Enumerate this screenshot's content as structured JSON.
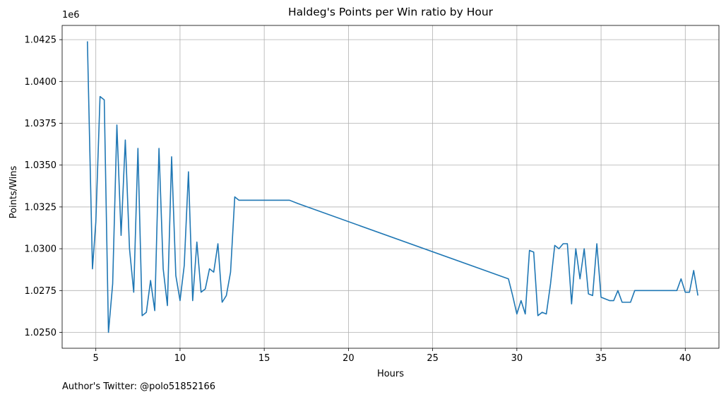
{
  "chart_data": {
    "type": "line",
    "title": "Haldeg's Points per Win ratio by Hour",
    "xlabel": "Hours",
    "ylabel": "Points/Wins",
    "y_offset_label": "1e6",
    "footer": "Author's Twitter: @polo51852166",
    "xlim": [
      3.0,
      42.0
    ],
    "ylim": [
      1.02405,
      1.04335
    ],
    "x_ticks": [
      5,
      10,
      15,
      20,
      25,
      30,
      35,
      40
    ],
    "x_tick_labels": [
      "5",
      "10",
      "15",
      "20",
      "25",
      "30",
      "35",
      "40"
    ],
    "y_ticks": [
      1.025,
      1.0275,
      1.03,
      1.0325,
      1.035,
      1.0375,
      1.04,
      1.0425
    ],
    "y_tick_labels": [
      "1.0250",
      "1.0275",
      "1.0300",
      "1.0325",
      "1.0350",
      "1.0375",
      "1.0400",
      "1.0425"
    ],
    "grid": true,
    "line_color": "#1f77b4",
    "series": [
      {
        "x": [
          4.5,
          4.8,
          5.0,
          5.25,
          5.5,
          5.75,
          6.0,
          6.25,
          6.5,
          6.75,
          7.0,
          7.25,
          7.5,
          7.75,
          8.0,
          8.25,
          8.5,
          8.75,
          9.0,
          9.25,
          9.5,
          9.75,
          10.0,
          10.25,
          10.5,
          10.75,
          11.0,
          11.25,
          11.5,
          11.75,
          12.0,
          12.25,
          12.5,
          12.75,
          13.0,
          13.25,
          13.5,
          14.0,
          15.0,
          16.0,
          16.5,
          17.0,
          29.5,
          29.75,
          30.0,
          30.25,
          30.5,
          30.75,
          31.0,
          31.25,
          31.5,
          31.75,
          32.0,
          32.25,
          32.5,
          32.75,
          33.0,
          33.25,
          33.5,
          33.75,
          34.0,
          34.25,
          34.5,
          34.75,
          35.0,
          35.5,
          35.75,
          36.0,
          36.25,
          36.5,
          36.75,
          37.0,
          39.5,
          39.75,
          40.0,
          40.25,
          40.5,
          40.75
        ],
        "y": [
          1.0424,
          1.0288,
          1.0316,
          1.0391,
          1.0389,
          1.025,
          1.0279,
          1.0374,
          1.0308,
          1.0365,
          1.03,
          1.0274,
          1.036,
          1.026,
          1.0262,
          1.0281,
          1.0263,
          1.036,
          1.0288,
          1.0266,
          1.0355,
          1.0284,
          1.0269,
          1.029,
          1.0346,
          1.0269,
          1.0304,
          1.0274,
          1.0276,
          1.0288,
          1.0286,
          1.0303,
          1.0268,
          1.0272,
          1.0286,
          1.0331,
          1.0329,
          1.0329,
          1.0329,
          1.0329,
          1.0329,
          1.0327,
          1.0282,
          1.0272,
          1.0261,
          1.0269,
          1.0261,
          1.0299,
          1.0298,
          1.026,
          1.0262,
          1.0261,
          1.0279,
          1.0302,
          1.03,
          1.0303,
          1.0303,
          1.0267,
          1.03,
          1.0282,
          1.03,
          1.0273,
          1.0272,
          1.0303,
          1.0271,
          1.0269,
          1.0269,
          1.0275,
          1.0268,
          1.0268,
          1.0268,
          1.0275,
          1.0275,
          1.0282,
          1.0274,
          1.0274,
          1.0287,
          1.0272
        ]
      }
    ]
  }
}
